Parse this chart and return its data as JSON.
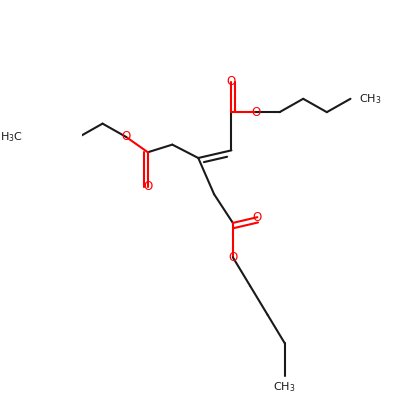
{
  "bg_color": "#ffffff",
  "bond_color": "#1a1a1a",
  "oxygen_color": "#ff0000",
  "lw": 1.5,
  "lw_db": 1.5,
  "fs_label": 8.0,
  "xlim": [
    -0.05,
    1.05
  ],
  "ylim": [
    1.02,
    -0.02
  ]
}
